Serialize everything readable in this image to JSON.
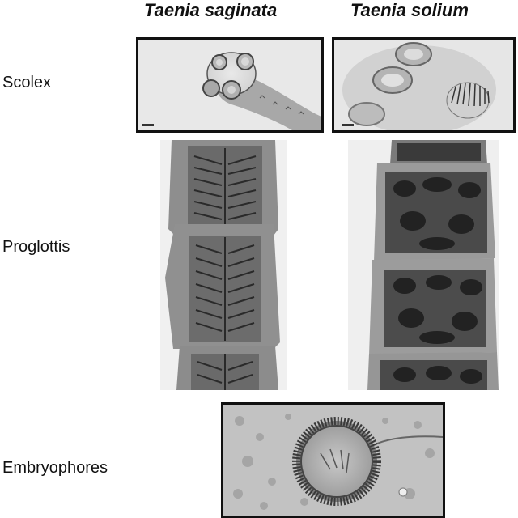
{
  "columns": {
    "left": "Taenia saginata",
    "right": "Taenia solium"
  },
  "rows": {
    "scolex": "Scolex",
    "proglottis": "Proglottis",
    "embryophores": "Embryophores"
  }
}
